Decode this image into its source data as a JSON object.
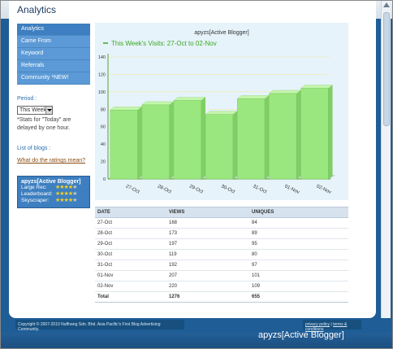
{
  "page": {
    "title": "Analytics"
  },
  "nav": {
    "items": [
      {
        "label": "Analytics",
        "active": true
      },
      {
        "label": "Came From"
      },
      {
        "label": "Keyword"
      },
      {
        "label": "Referrals"
      },
      {
        "label": "Community *NEW!"
      }
    ]
  },
  "period": {
    "label": "Period :",
    "selected": "This Week",
    "note": "*Stats for \"Today\" are delayed by one hour."
  },
  "links": {
    "list_of_blogs": "List of blogs :",
    "ratings_help": "What do the ratings mean?"
  },
  "ratings": {
    "blog_name": "apyzs[Active Blogger]",
    "rows": [
      {
        "label": "Large Rec:",
        "stars": 4
      },
      {
        "label": "Leaderboard:",
        "stars": 4
      },
      {
        "label": "Skyscraper:",
        "stars": 4
      }
    ],
    "max_stars": 5
  },
  "chart_data": {
    "type": "bar",
    "title": "apyzs[Active Blogger]",
    "legend": "This Week's Visits: 27-Oct to 02-Nov",
    "categories": [
      "27-Oct",
      "28-Oct",
      "29-Oct",
      "30-Oct",
      "31-Oct",
      "01-Nov",
      "02-Nov"
    ],
    "values": [
      79,
      85,
      90,
      74,
      92,
      98,
      104
    ],
    "ylim": [
      0,
      140
    ],
    "yticks": [
      0,
      20,
      40,
      60,
      80,
      100,
      120,
      140
    ],
    "colors": {
      "bar": "#9be77f",
      "bar_side": "#7fcf64",
      "bar_top": "#c4f5ad",
      "axis": "#5aa02c",
      "legend": "#3aa61e"
    },
    "grid": true
  },
  "table": {
    "headers": [
      "DATE",
      "VIEWS",
      "UNIQUES"
    ],
    "rows": [
      [
        "27-Oct",
        "168",
        "84"
      ],
      [
        "28-Oct",
        "173",
        "89"
      ],
      [
        "29-Oct",
        "197",
        "95"
      ],
      [
        "30-Oct",
        "119",
        "80"
      ],
      [
        "31-Oct",
        "192",
        "97"
      ],
      [
        "01-Nov",
        "207",
        "101"
      ],
      [
        "02-Nov",
        "220",
        "109"
      ]
    ],
    "total": [
      "Total",
      "1276",
      "655"
    ]
  },
  "footer": {
    "copyright": "Copyright © 2007-2010 Nuffnang Sdn. Bhd. Asia Pacific's First Blog Advertising Community.",
    "privacy": "privacy policy",
    "sep": " | ",
    "terms": "terms & conditions"
  },
  "caption": "apyzs[Active Blogger]"
}
